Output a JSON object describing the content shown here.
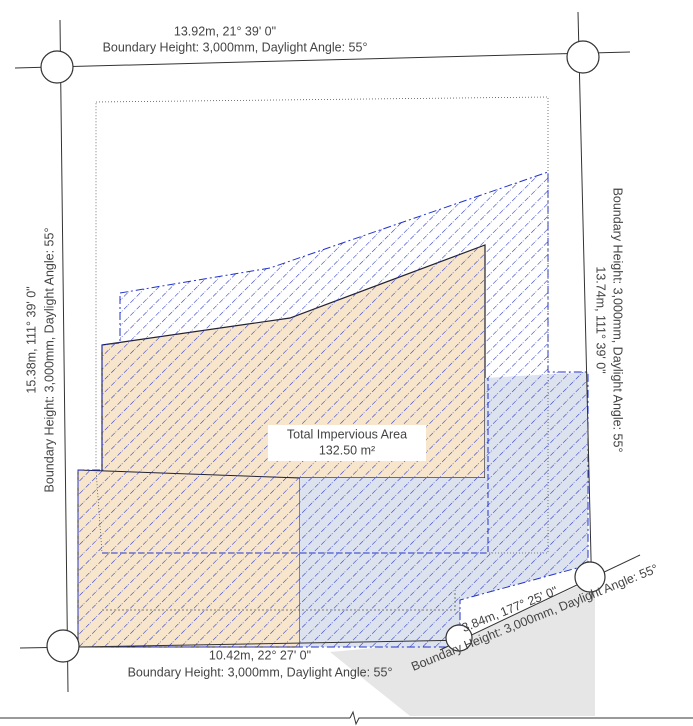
{
  "boundaries": [
    {
      "dimension": "13.92m, 21° 39' 0\"",
      "rule": "Boundary Height: 3,000mm, Daylight Angle: 55°"
    },
    {
      "dimension": "15.38m, 111° 39' 0\"",
      "rule": "Boundary Height: 3,000mm, Daylight Angle: 55°"
    },
    {
      "dimension": "13.74m, 111° 39' 0\"",
      "rule": "Boundary Height: 3,000mm, Daylight Angle: 55°"
    },
    {
      "dimension": "10.42m, 22° 27' 0\"",
      "rule": "Boundary Height: 3,000mm, Daylight Angle: 55°"
    },
    {
      "dimension": "3.84m, 177° 25' 0\"",
      "rule": "Boundary Height: 3,000mm, Daylight Angle: 55°"
    }
  ],
  "area_label": {
    "title": "Total Impervious Area",
    "value": "132.50 m²"
  }
}
